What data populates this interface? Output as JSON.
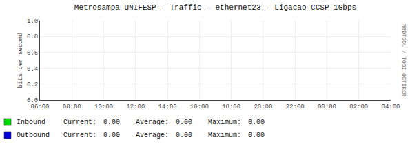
{
  "chart_data": {
    "type": "line",
    "title": "Metrosampa UNIFESP - Traffic - ethernet23 - Ligacao CCSP 1Gbps",
    "y_label": "bits per second",
    "x": [],
    "series": [
      {
        "name": "Inbound",
        "color": "#00dd00",
        "values": [],
        "stats": [
          {
            "value": 0,
            "label": "0.00"
          },
          {
            "value": 0,
            "label": "0.00"
          },
          {
            "value": 0,
            "label": "0.00"
          }
        ]
      },
      {
        "name": "Outbound",
        "color": "#0000dd",
        "values": [],
        "stats": [
          {
            "value": 0,
            "label": "0.00"
          },
          {
            "value": 0,
            "label": "0.00"
          },
          {
            "value": 0,
            "label": "0.00"
          }
        ]
      }
    ],
    "stat_labels": [
      "Current:",
      "Average:",
      "Maximum:"
    ],
    "annotations": [
      "RRDTOOL / TOBI OETIKER"
    ],
    "xlim": [
      0,
      22
    ],
    "xticks": [
      {
        "value": 0,
        "label": "06:00"
      },
      {
        "value": 2,
        "label": "08:00"
      },
      {
        "value": 4,
        "label": "10:00"
      },
      {
        "value": 6,
        "label": "12:00"
      },
      {
        "value": 8,
        "label": "14:00"
      },
      {
        "value": 10,
        "label": "16:00"
      },
      {
        "value": 12,
        "label": "18:00"
      },
      {
        "value": 14,
        "label": "20:00"
      },
      {
        "value": 16,
        "label": "22:00"
      },
      {
        "value": 18,
        "label": "00:00"
      },
      {
        "value": 20,
        "label": "02:00"
      },
      {
        "value": 22,
        "label": "04:00"
      }
    ],
    "ylim": [
      0.0,
      1.0
    ],
    "yticks": [
      {
        "value": 0.0,
        "label": "0.0"
      },
      0.2,
      0.4,
      0.6,
      0.8,
      {
        "value": 1.0,
        "label": "1.0"
      }
    ],
    "grid": true
  }
}
